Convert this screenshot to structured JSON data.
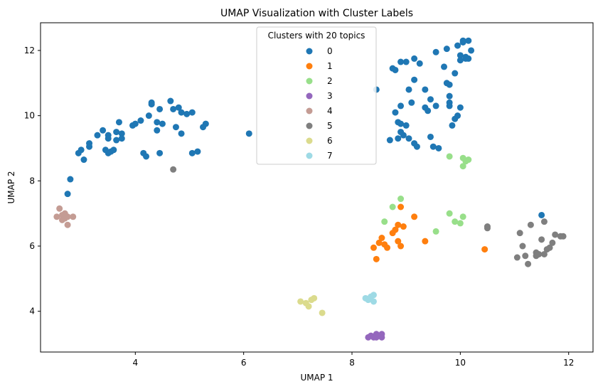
{
  "chart_data": {
    "type": "scatter",
    "title": "UMAP Visualization with Cluster Labels",
    "xlabel": "UMAP 1",
    "ylabel": "UMAP 2",
    "xlim": [
      2.25,
      12.45
    ],
    "ylim": [
      2.75,
      12.85
    ],
    "xticks": [
      4,
      6,
      8,
      10,
      12
    ],
    "yticks": [
      4,
      6,
      8,
      10,
      12
    ],
    "grid": false,
    "legend": {
      "title": "Clusters with 20 topics",
      "placement": "top-center"
    },
    "series": [
      {
        "name": "0",
        "color": "#1f77b4",
        "points": [
          [
            2.8,
            8.05
          ],
          [
            2.75,
            7.6
          ],
          [
            2.95,
            8.85
          ],
          [
            3.0,
            8.95
          ],
          [
            3.05,
            8.65
          ],
          [
            3.15,
            9.05
          ],
          [
            3.15,
            9.15
          ],
          [
            3.3,
            9.4
          ],
          [
            3.4,
            9.55
          ],
          [
            3.45,
            8.95
          ],
          [
            3.5,
            9.4
          ],
          [
            3.5,
            9.3
          ],
          [
            3.5,
            8.85
          ],
          [
            3.55,
            8.9
          ],
          [
            3.6,
            8.95
          ],
          [
            3.65,
            9.25
          ],
          [
            3.65,
            9.5
          ],
          [
            3.7,
            9.8
          ],
          [
            3.75,
            9.45
          ],
          [
            3.75,
            9.3
          ],
          [
            3.95,
            9.7
          ],
          [
            4.0,
            9.75
          ],
          [
            4.1,
            9.85
          ],
          [
            4.15,
            8.85
          ],
          [
            4.2,
            8.75
          ],
          [
            4.25,
            10.0
          ],
          [
            4.3,
            10.35
          ],
          [
            4.3,
            10.4
          ],
          [
            4.4,
            9.8
          ],
          [
            4.4,
            9.55
          ],
          [
            4.45,
            8.85
          ],
          [
            4.45,
            10.2
          ],
          [
            4.5,
            9.75
          ],
          [
            4.65,
            10.45
          ],
          [
            4.7,
            10.2
          ],
          [
            4.75,
            9.65
          ],
          [
            4.8,
            10.25
          ],
          [
            4.85,
            10.1
          ],
          [
            4.85,
            9.45
          ],
          [
            4.95,
            10.05
          ],
          [
            5.05,
            10.1
          ],
          [
            5.05,
            8.85
          ],
          [
            5.15,
            8.9
          ],
          [
            5.25,
            9.65
          ],
          [
            5.3,
            9.75
          ],
          [
            6.1,
            9.45
          ],
          [
            8.45,
            10.8
          ],
          [
            8.7,
            9.25
          ],
          [
            8.75,
            11.45
          ],
          [
            8.8,
            11.4
          ],
          [
            8.8,
            10.1
          ],
          [
            8.85,
            9.8
          ],
          [
            8.85,
            9.3
          ],
          [
            8.9,
            11.65
          ],
          [
            8.9,
            10.3
          ],
          [
            8.9,
            9.75
          ],
          [
            8.9,
            9.5
          ],
          [
            8.95,
            9.4
          ],
          [
            9.0,
            11.65
          ],
          [
            9.0,
            9.7
          ],
          [
            9.05,
            9.3
          ],
          [
            9.05,
            10.8
          ],
          [
            9.1,
            10.4
          ],
          [
            9.15,
            11.75
          ],
          [
            9.15,
            9.15
          ],
          [
            9.15,
            11.1
          ],
          [
            9.2,
            9.05
          ],
          [
            9.25,
            11.6
          ],
          [
            9.35,
            10.8
          ],
          [
            9.35,
            10.25
          ],
          [
            9.4,
            10.15
          ],
          [
            9.45,
            10.5
          ],
          [
            9.45,
            9.35
          ],
          [
            9.5,
            9.05
          ],
          [
            9.55,
            10.3
          ],
          [
            9.55,
            11.95
          ],
          [
            9.6,
            9.0
          ],
          [
            9.7,
            11.5
          ],
          [
            9.75,
            11.0
          ],
          [
            9.75,
            12.05
          ],
          [
            9.8,
            10.95
          ],
          [
            9.8,
            10.6
          ],
          [
            9.8,
            10.4
          ],
          [
            9.8,
            10.3
          ],
          [
            9.85,
            9.7
          ],
          [
            9.9,
            11.3
          ],
          [
            9.9,
            9.9
          ],
          [
            9.95,
            10.0
          ],
          [
            9.95,
            12.15
          ],
          [
            10.0,
            11.85
          ],
          [
            10.0,
            11.7
          ],
          [
            10.0,
            10.25
          ],
          [
            10.05,
            12.25
          ],
          [
            10.05,
            12.3
          ],
          [
            10.1,
            11.75
          ],
          [
            10.1,
            11.8
          ],
          [
            10.15,
            11.75
          ],
          [
            10.15,
            12.3
          ],
          [
            10.2,
            12.0
          ],
          [
            11.5,
            6.95
          ]
        ]
      },
      {
        "name": "1",
        "color": "#ff7f0e",
        "points": [
          [
            8.4,
            5.95
          ],
          [
            8.45,
            5.6
          ],
          [
            8.5,
            6.1
          ],
          [
            8.55,
            6.25
          ],
          [
            8.6,
            6.05
          ],
          [
            8.65,
            5.95
          ],
          [
            8.75,
            6.4
          ],
          [
            8.8,
            6.5
          ],
          [
            8.85,
            6.65
          ],
          [
            8.85,
            6.15
          ],
          [
            8.9,
            6.0
          ],
          [
            8.9,
            7.2
          ],
          [
            8.95,
            6.6
          ],
          [
            9.15,
            6.9
          ],
          [
            9.35,
            6.15
          ],
          [
            10.45,
            5.9
          ]
        ]
      },
      {
        "name": "2",
        "color": "#98df8a",
        "points": [
          [
            8.6,
            6.75
          ],
          [
            8.75,
            7.2
          ],
          [
            8.9,
            7.45
          ],
          [
            9.55,
            6.45
          ],
          [
            9.8,
            7.0
          ],
          [
            9.8,
            8.75
          ],
          [
            9.9,
            6.75
          ],
          [
            10.0,
            6.7
          ],
          [
            10.05,
            6.9
          ],
          [
            10.05,
            8.7
          ],
          [
            10.05,
            8.45
          ],
          [
            10.1,
            8.6
          ],
          [
            10.15,
            8.65
          ]
        ]
      },
      {
        "name": "3",
        "color": "#9467bd",
        "points": [
          [
            8.3,
            3.2
          ],
          [
            8.35,
            3.25
          ],
          [
            8.4,
            3.2
          ],
          [
            8.45,
            3.3
          ],
          [
            8.45,
            3.2
          ],
          [
            8.5,
            3.25
          ],
          [
            8.55,
            3.2
          ],
          [
            8.55,
            3.3
          ]
        ]
      },
      {
        "name": "4",
        "color": "#c49c94",
        "points": [
          [
            2.55,
            6.9
          ],
          [
            2.6,
            7.15
          ],
          [
            2.65,
            6.95
          ],
          [
            2.65,
            6.8
          ],
          [
            2.7,
            7.0
          ],
          [
            2.7,
            6.85
          ],
          [
            2.75,
            6.9
          ],
          [
            2.75,
            6.65
          ],
          [
            2.85,
            6.9
          ]
        ]
      },
      {
        "name": "5",
        "color": "#7f7f7f",
        "points": [
          [
            4.7,
            8.35
          ],
          [
            10.5,
            6.6
          ],
          [
            10.5,
            6.55
          ],
          [
            11.05,
            5.65
          ],
          [
            11.1,
            6.4
          ],
          [
            11.15,
            6.0
          ],
          [
            11.2,
            5.7
          ],
          [
            11.25,
            5.45
          ],
          [
            11.3,
            6.65
          ],
          [
            11.4,
            5.7
          ],
          [
            11.4,
            5.8
          ],
          [
            11.45,
            5.75
          ],
          [
            11.5,
            6.2
          ],
          [
            11.55,
            5.75
          ],
          [
            11.55,
            6.75
          ],
          [
            11.6,
            5.9
          ],
          [
            11.65,
            5.95
          ],
          [
            11.7,
            6.1
          ],
          [
            11.75,
            6.35
          ],
          [
            11.85,
            6.3
          ],
          [
            11.9,
            6.3
          ]
        ]
      },
      {
        "name": "6",
        "color": "#dbdb8d",
        "points": [
          [
            7.05,
            4.3
          ],
          [
            7.15,
            4.25
          ],
          [
            7.2,
            4.15
          ],
          [
            7.25,
            4.35
          ],
          [
            7.3,
            4.4
          ],
          [
            7.45,
            3.95
          ]
        ]
      },
      {
        "name": "7",
        "color": "#9edae5",
        "points": [
          [
            8.25,
            4.4
          ],
          [
            8.3,
            4.35
          ],
          [
            8.35,
            4.45
          ],
          [
            8.4,
            4.5
          ],
          [
            8.4,
            4.3
          ]
        ]
      }
    ]
  }
}
